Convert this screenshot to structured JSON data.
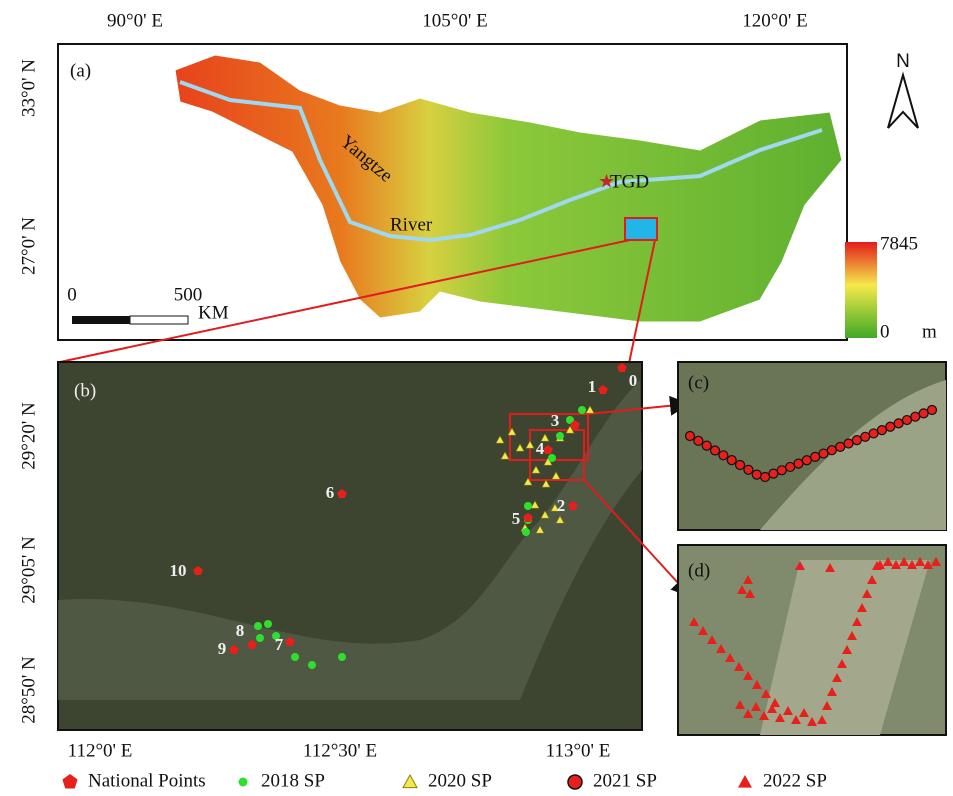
{
  "panel_a": {
    "label": "(a)",
    "top_axis": [
      "90°0' E",
      "105°0' E",
      "120°0' E"
    ],
    "left_axis": [
      "33°0' N",
      "27°0' N"
    ],
    "north": "N",
    "river_label": [
      "Yangtze",
      "River"
    ],
    "station": "TGD",
    "scale_bar": {
      "ticks": [
        "0",
        "500"
      ],
      "unit": "KM"
    },
    "elevation_legend": {
      "max": "7845",
      "min": "0",
      "unit": "m"
    }
  },
  "panel_b": {
    "label": "(b)",
    "left_axis": [
      "29°20' N",
      "29°05' N",
      "28°50' N"
    ],
    "bottom_axis": [
      "112°0' E",
      "112°30' E",
      "113°0' E"
    ],
    "point_labels": [
      "0",
      "1",
      "2",
      "3",
      "4",
      "5",
      "6",
      "7",
      "8",
      "9",
      "10"
    ]
  },
  "panel_c": {
    "label": "(c)"
  },
  "panel_d": {
    "label": "(d)"
  },
  "legend": {
    "items": [
      "National Points",
      "2018 SP",
      "2020 SP",
      "2021 SP",
      "2022 SP"
    ]
  }
}
